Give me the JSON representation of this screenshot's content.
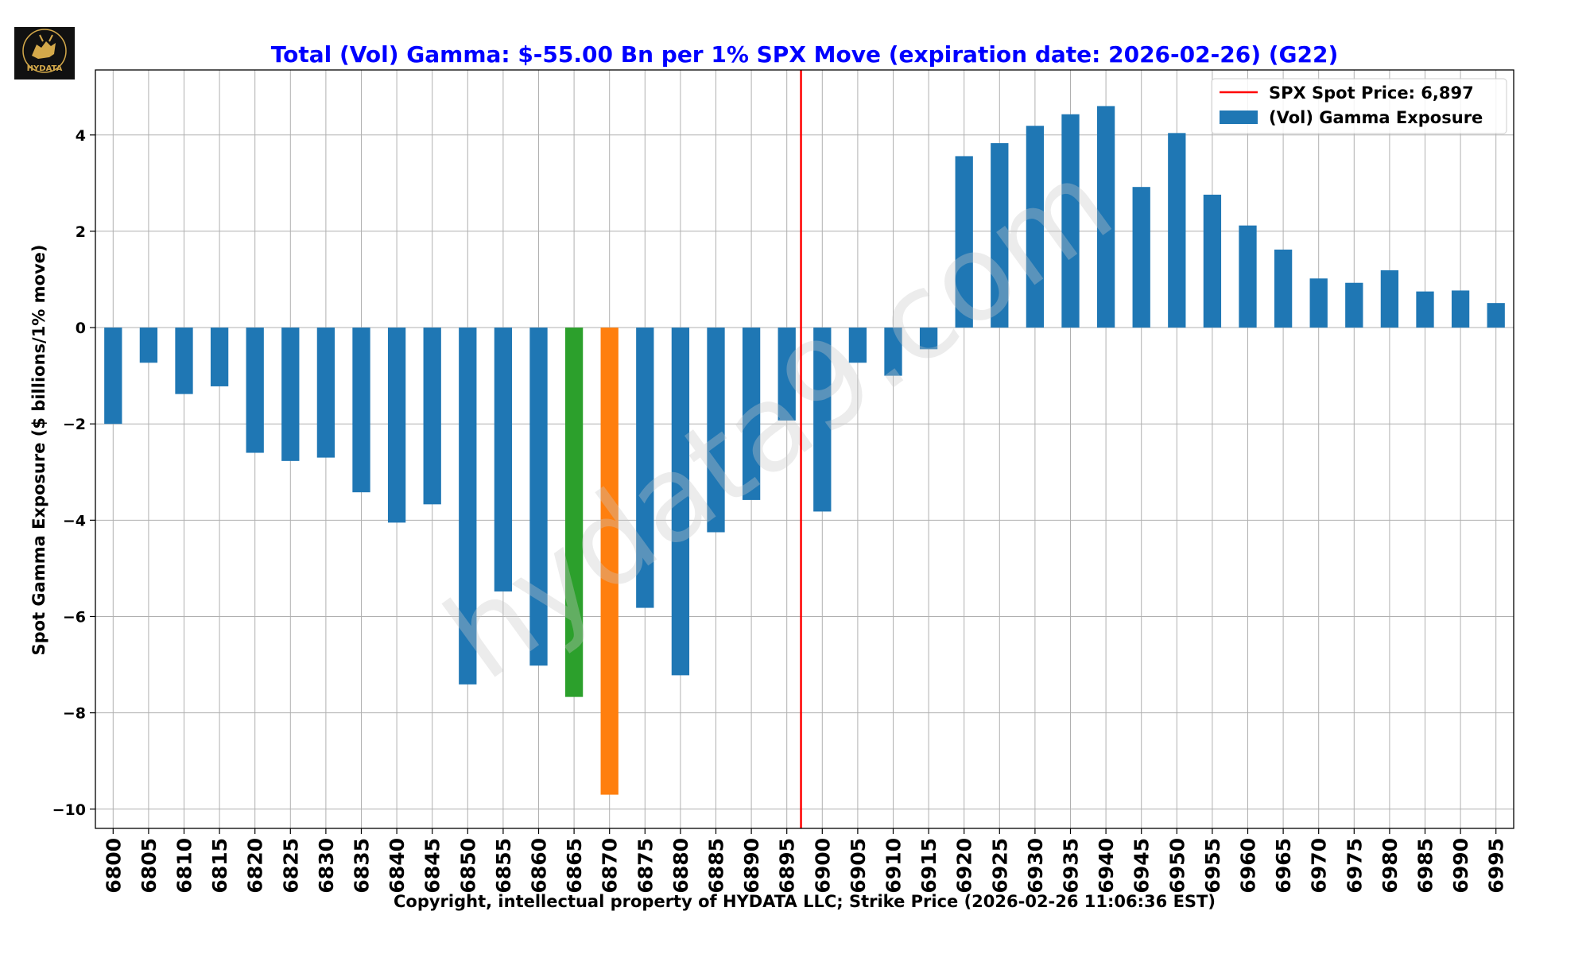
{
  "logo": {
    "text": "HYDATA",
    "icon": "bull-logo-icon"
  },
  "watermark": "hydata9.com",
  "chart_data": {
    "type": "bar",
    "title": "Total (Vol) Gamma: $-55.00 Bn per 1% SPX Move (expiration date: 2026-02-26) (G22)",
    "xlabel": "Copyright, intellectual property of HYDATA LLC; Strike Price (2026-02-26 11:06:36 EST)",
    "ylabel": "Spot Gamma Exposure ($ billions/1% move)",
    "ylim": [
      -10.4,
      5.35
    ],
    "yticks": [
      4,
      2,
      0,
      -2,
      -4,
      -6,
      -8,
      -10
    ],
    "ytick_labels": [
      "4",
      "2",
      "0",
      "−2",
      "−4",
      "−6",
      "−8",
      "−10"
    ],
    "grid": true,
    "legend_position": "top-right",
    "spot_price": 6897,
    "spot_label": "SPX Spot Price: 6,897",
    "series": [
      {
        "name": "(Vol) Gamma Exposure",
        "values": [
          -2.0,
          -0.73,
          -1.38,
          -1.22,
          -2.6,
          -2.77,
          -2.7,
          -3.42,
          -4.05,
          -3.67,
          -7.41,
          -5.48,
          -7.02,
          -7.67,
          -9.7,
          -5.82,
          -7.22,
          -4.25,
          -3.58,
          -1.93,
          -3.82,
          -0.73,
          -1.0,
          -0.45,
          3.56,
          3.83,
          4.19,
          4.43,
          4.6,
          2.92,
          4.04,
          2.76,
          2.12,
          1.62,
          1.02,
          0.93,
          1.19,
          0.75,
          0.77,
          0.51
        ]
      }
    ],
    "categories": [
      "6800",
      "6805",
      "6810",
      "6815",
      "6820",
      "6825",
      "6830",
      "6835",
      "6840",
      "6845",
      "6850",
      "6855",
      "6860",
      "6865",
      "6870",
      "6875",
      "6880",
      "6885",
      "6890",
      "6895",
      "6900",
      "6905",
      "6910",
      "6915",
      "6920",
      "6925",
      "6930",
      "6935",
      "6940",
      "6945",
      "6950",
      "6955",
      "6960",
      "6965",
      "6970",
      "6975",
      "6980",
      "6985",
      "6990",
      "6995"
    ],
    "colors": {
      "default": "#1f77b4",
      "highlight_green": "#2ca02c",
      "highlight_orange": "#ff7f0e",
      "spot_line": "#ff0000",
      "grid": "#b0b0b0"
    },
    "highlights": {
      "6865": "#2ca02c",
      "6870": "#ff7f0e"
    }
  }
}
